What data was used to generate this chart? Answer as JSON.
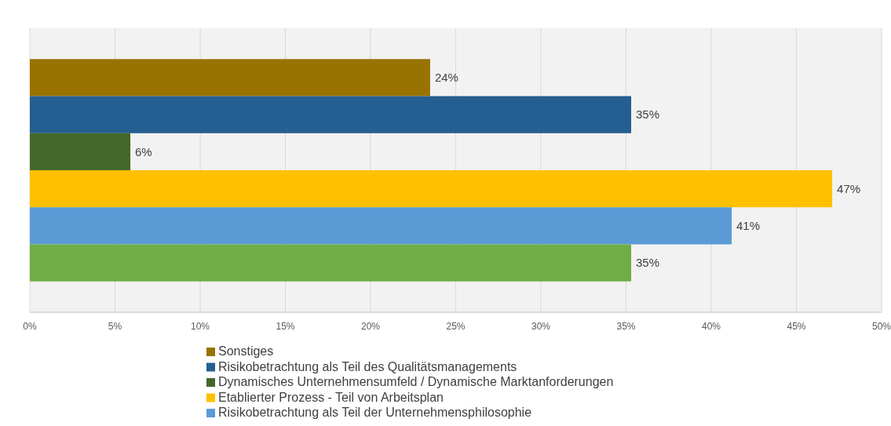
{
  "chart_data": {
    "type": "bar",
    "orientation": "horizontal",
    "categories": [
      null
    ],
    "series": [
      {
        "name": "Sonstiges",
        "color": "#997300",
        "values": [
          23.5
        ],
        "value_labels": [
          "24%"
        ]
      },
      {
        "name": "Risikobetrachtung als Teil des Qualitätsmanagements",
        "color": "#255e91",
        "values": [
          35.3
        ],
        "value_labels": [
          "35%"
        ]
      },
      {
        "name": "Dynamisches Unternehmensumfeld / Dynamische Marktanforderungen",
        "color": "#43682b",
        "values": [
          5.9
        ],
        "value_labels": [
          "6%"
        ]
      },
      {
        "name": "Etablierter Prozess - Teil von Arbeitsplan",
        "color": "#ffc000",
        "values": [
          47.1
        ],
        "value_labels": [
          "47%"
        ]
      },
      {
        "name": "Risikobetrachtung als Teil der Unternehmensphilosophie",
        "color": "#5b9bd5",
        "values": [
          41.2
        ],
        "value_labels": [
          "41%"
        ]
      },
      {
        "color": "#70ad47",
        "values": [
          35.3
        ],
        "value_labels": [
          "35%"
        ]
      }
    ],
    "xlim": [
      0,
      50
    ],
    "xticks": [
      {
        "value": 0,
        "label": "0%"
      },
      {
        "value": 5,
        "label": "5%"
      },
      {
        "value": 10,
        "label": "10%"
      },
      {
        "value": 15,
        "label": "15%"
      },
      {
        "value": 20,
        "label": "20%"
      },
      {
        "value": 25,
        "label": "25%"
      },
      {
        "value": 30,
        "label": "30%"
      },
      {
        "value": 35,
        "label": "35%"
      },
      {
        "value": 40,
        "label": "40%"
      },
      {
        "value": 45,
        "label": "45%"
      },
      {
        "value": 50,
        "label": "50%"
      }
    ],
    "grid": "x",
    "legend": "bottom"
  }
}
